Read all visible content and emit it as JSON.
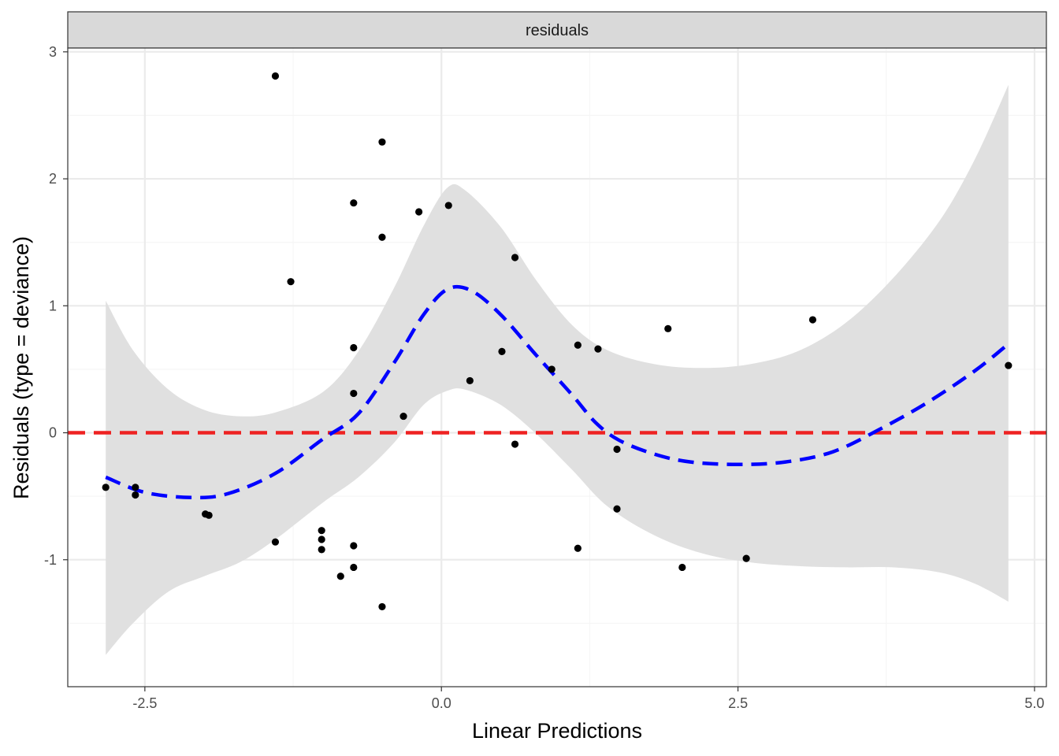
{
  "chart_data": {
    "type": "scatter",
    "facet_label": "residuals",
    "xlabel": "Linear Predictions",
    "ylabel": "Residuals (type = deviance)",
    "xlim": [
      -3.15,
      5.1
    ],
    "ylim": [
      -2.0,
      3.03
    ],
    "x_ticks": [
      {
        "value": -2.5,
        "label": "-2.5"
      },
      {
        "value": 0.0,
        "label": "0.0"
      },
      {
        "value": 2.5,
        "label": "2.5"
      },
      {
        "value": 5.0,
        "label": "5.0"
      }
    ],
    "y_ticks": [
      {
        "value": -1,
        "label": "-1"
      },
      {
        "value": 0,
        "label": "0"
      },
      {
        "value": 1,
        "label": "1"
      },
      {
        "value": 2,
        "label": "2"
      },
      {
        "value": 3,
        "label": "3"
      }
    ],
    "points": [
      [
        -2.83,
        -0.43
      ],
      [
        -2.58,
        -0.43
      ],
      [
        -2.58,
        -0.49
      ],
      [
        -1.99,
        -0.64
      ],
      [
        -1.96,
        -0.65
      ],
      [
        -1.4,
        2.81
      ],
      [
        -1.4,
        -0.86
      ],
      [
        -1.27,
        1.19
      ],
      [
        -1.01,
        -0.77
      ],
      [
        -1.01,
        -0.84
      ],
      [
        -1.01,
        -0.92
      ],
      [
        -0.85,
        -1.13
      ],
      [
        -0.74,
        1.81
      ],
      [
        -0.74,
        0.67
      ],
      [
        -0.74,
        0.31
      ],
      [
        -0.74,
        -0.89
      ],
      [
        -0.74,
        -1.06
      ],
      [
        -0.5,
        2.29
      ],
      [
        -0.5,
        1.54
      ],
      [
        -0.5,
        -1.37
      ],
      [
        -0.32,
        0.13
      ],
      [
        -0.19,
        1.74
      ],
      [
        0.06,
        1.79
      ],
      [
        0.24,
        0.41
      ],
      [
        0.51,
        0.64
      ],
      [
        0.62,
        1.38
      ],
      [
        0.62,
        -0.09
      ],
      [
        0.93,
        0.5
      ],
      [
        1.15,
        0.69
      ],
      [
        1.15,
        -0.91
      ],
      [
        1.32,
        0.66
      ],
      [
        1.48,
        -0.13
      ],
      [
        1.48,
        -0.6
      ],
      [
        1.91,
        0.82
      ],
      [
        2.03,
        -1.06
      ],
      [
        2.57,
        -0.99
      ],
      [
        3.13,
        0.89
      ],
      [
        4.78,
        0.53
      ]
    ],
    "smooth_line": [
      [
        -2.83,
        -0.35
      ],
      [
        -2.5,
        -0.47
      ],
      [
        -2.1,
        -0.51
      ],
      [
        -1.8,
        -0.48
      ],
      [
        -1.4,
        -0.32
      ],
      [
        -1.0,
        -0.05
      ],
      [
        -0.7,
        0.15
      ],
      [
        -0.4,
        0.55
      ],
      [
        -0.15,
        0.93
      ],
      [
        0.05,
        1.13
      ],
      [
        0.25,
        1.12
      ],
      [
        0.5,
        0.93
      ],
      [
        0.8,
        0.61
      ],
      [
        1.1,
        0.3
      ],
      [
        1.3,
        0.08
      ],
      [
        1.5,
        -0.06
      ],
      [
        1.8,
        -0.17
      ],
      [
        2.1,
        -0.23
      ],
      [
        2.5,
        -0.25
      ],
      [
        2.9,
        -0.23
      ],
      [
        3.3,
        -0.15
      ],
      [
        3.7,
        0.03
      ],
      [
        4.1,
        0.24
      ],
      [
        4.5,
        0.49
      ],
      [
        4.78,
        0.7
      ]
    ],
    "ci_upper": [
      [
        -2.83,
        1.04
      ],
      [
        -2.6,
        0.65
      ],
      [
        -2.3,
        0.34
      ],
      [
        -2.0,
        0.18
      ],
      [
        -1.7,
        0.13
      ],
      [
        -1.4,
        0.16
      ],
      [
        -1.0,
        0.32
      ],
      [
        -0.7,
        0.64
      ],
      [
        -0.4,
        1.14
      ],
      [
        -0.15,
        1.63
      ],
      [
        0.05,
        1.93
      ],
      [
        0.2,
        1.91
      ],
      [
        0.5,
        1.62
      ],
      [
        0.8,
        1.2
      ],
      [
        1.1,
        0.85
      ],
      [
        1.4,
        0.65
      ],
      [
        1.8,
        0.54
      ],
      [
        2.2,
        0.51
      ],
      [
        2.6,
        0.54
      ],
      [
        3.0,
        0.64
      ],
      [
        3.4,
        0.86
      ],
      [
        3.8,
        1.21
      ],
      [
        4.2,
        1.67
      ],
      [
        4.5,
        2.16
      ],
      [
        4.78,
        2.74
      ]
    ],
    "ci_lower": [
      [
        -2.83,
        -1.75
      ],
      [
        -2.6,
        -1.5
      ],
      [
        -2.3,
        -1.25
      ],
      [
        -2.0,
        -1.13
      ],
      [
        -1.7,
        -1.02
      ],
      [
        -1.4,
        -0.84
      ],
      [
        -1.0,
        -0.55
      ],
      [
        -0.7,
        -0.35
      ],
      [
        -0.4,
        -0.08
      ],
      [
        -0.15,
        0.22
      ],
      [
        0.05,
        0.33
      ],
      [
        0.2,
        0.34
      ],
      [
        0.5,
        0.22
      ],
      [
        0.8,
        -0.01
      ],
      [
        1.1,
        -0.29
      ],
      [
        1.4,
        -0.58
      ],
      [
        1.8,
        -0.81
      ],
      [
        2.2,
        -0.95
      ],
      [
        2.6,
        -1.02
      ],
      [
        3.0,
        -1.05
      ],
      [
        3.4,
        -1.06
      ],
      [
        3.8,
        -1.06
      ],
      [
        4.2,
        -1.1
      ],
      [
        4.5,
        -1.19
      ],
      [
        4.78,
        -1.33
      ]
    ],
    "reference_line_y": 0,
    "colors": {
      "points": "#000000",
      "smooth": "#0000ff",
      "ribbon": "#e0e0e0",
      "reference": "#ee2222",
      "strip_fill": "#d9d9d9",
      "grid_major": "#ebebeb",
      "grid_minor": "#f5f5f5",
      "panel_border": "#333333"
    },
    "grid": true
  }
}
